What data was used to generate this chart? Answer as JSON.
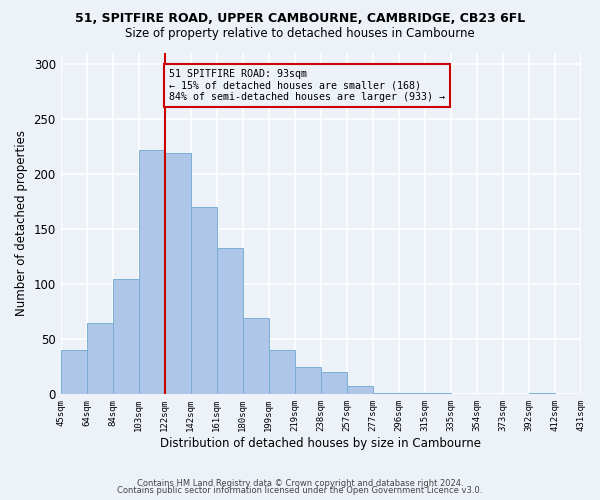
{
  "title1": "51, SPITFIRE ROAD, UPPER CAMBOURNE, CAMBRIDGE, CB23 6FL",
  "title2": "Size of property relative to detached houses in Cambourne",
  "xlabel": "Distribution of detached houses by size in Cambourne",
  "ylabel": "Number of detached properties",
  "bin_labels": [
    "45sqm",
    "64sqm",
    "84sqm",
    "103sqm",
    "122sqm",
    "142sqm",
    "161sqm",
    "180sqm",
    "199sqm",
    "219sqm",
    "238sqm",
    "257sqm",
    "277sqm",
    "296sqm",
    "315sqm",
    "335sqm",
    "354sqm",
    "373sqm",
    "392sqm",
    "412sqm",
    "431sqm"
  ],
  "bar_heights": [
    40,
    65,
    105,
    222,
    219,
    170,
    133,
    69,
    40,
    25,
    20,
    8,
    1,
    1,
    1,
    0,
    0,
    0,
    1,
    0
  ],
  "bar_color": "#aec6e8",
  "bar_edge_color": "#7aafd4",
  "background_color": "#edf2f9",
  "grid_color": "#ffffff",
  "vline_position": 4,
  "vline_color": "#cc0000",
  "annotation_text": "51 SPITFIRE ROAD: 93sqm\n← 15% of detached houses are smaller (168)\n84% of semi-detached houses are larger (933) →",
  "annotation_box_color": "#cc0000",
  "ylim": [
    0,
    310
  ],
  "yticks": [
    0,
    50,
    100,
    150,
    200,
    250,
    300
  ],
  "footer1": "Contains HM Land Registry data © Crown copyright and database right 2024.",
  "footer2": "Contains public sector information licensed under the Open Government Licence v3.0."
}
